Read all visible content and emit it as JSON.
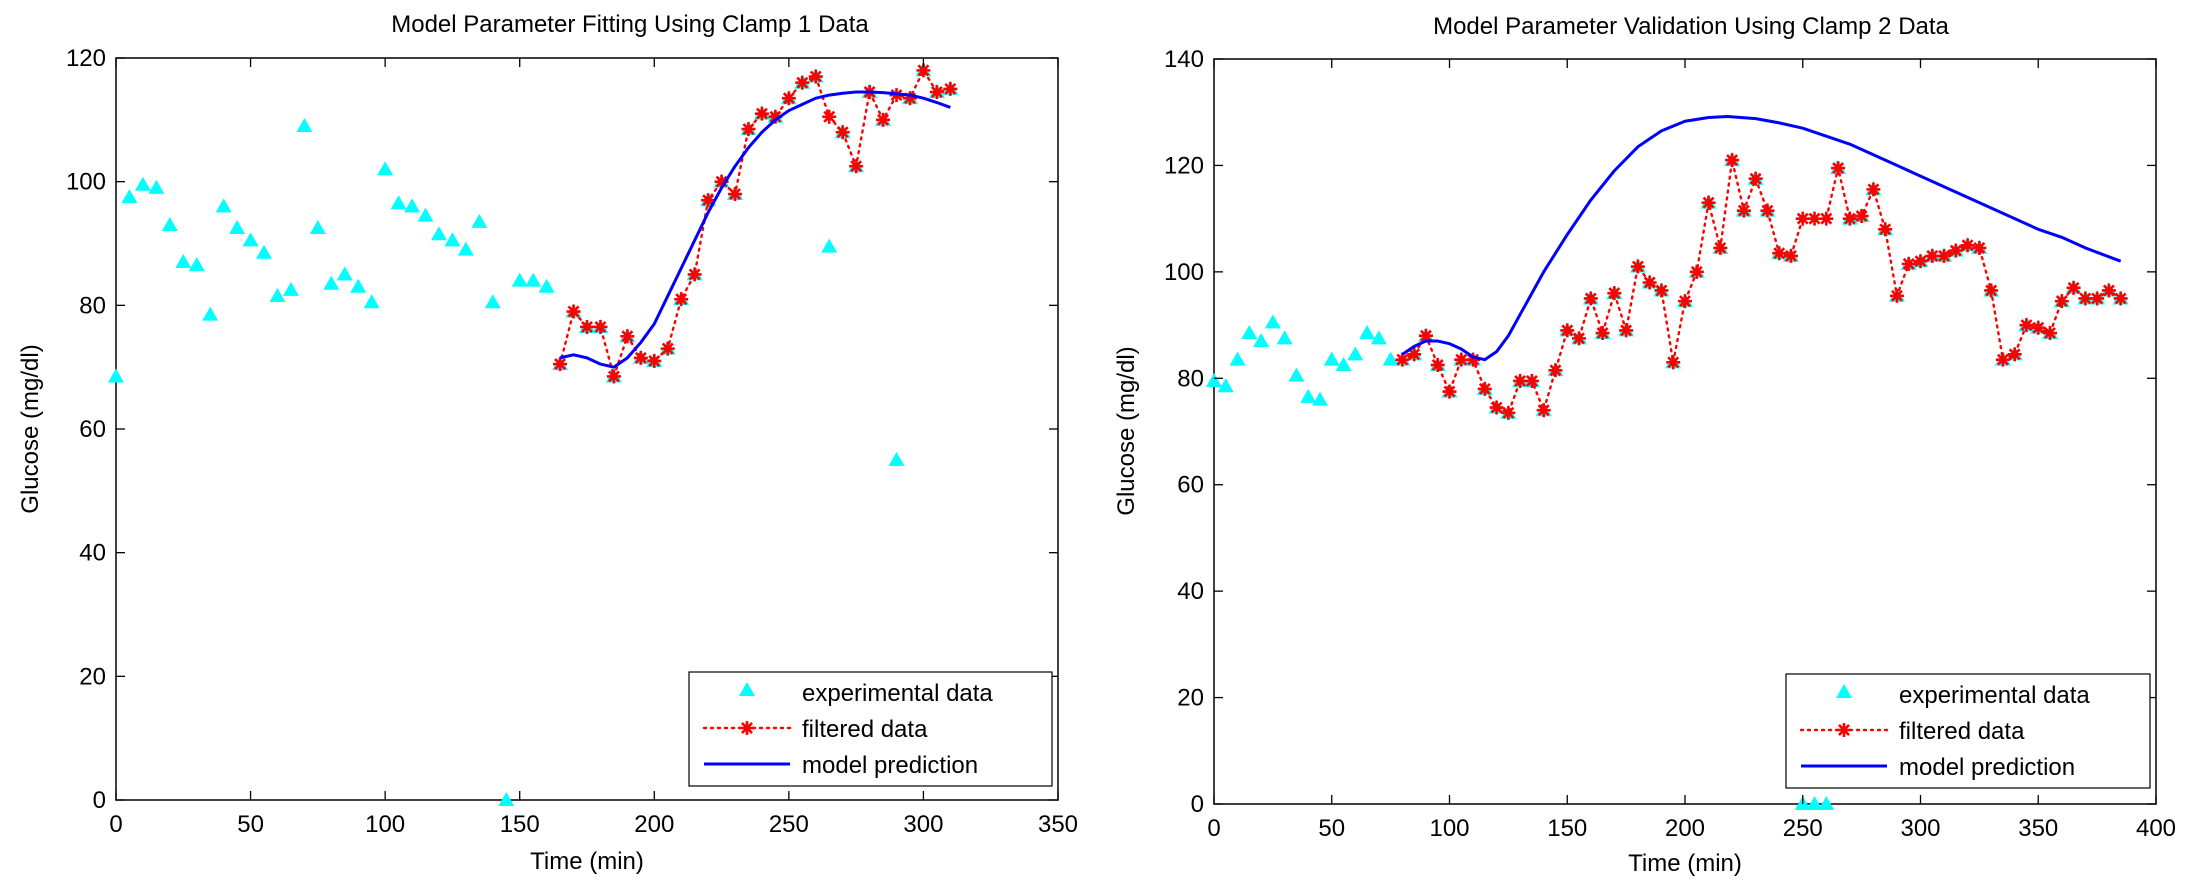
{
  "colors": {
    "experimental": "#00ffff",
    "filtered": "#ff0000",
    "model": "#0000ff",
    "axes": "#000000"
  },
  "chart_data": [
    {
      "type": "line",
      "title": "Model Parameter Fitting Using Clamp 1 Data",
      "xlabel": "Time (min)",
      "ylabel": "Glucose (mg/dl)",
      "xlim": [
        0,
        350
      ],
      "ylim": [
        0,
        120
      ],
      "xticks": [
        0,
        50,
        100,
        150,
        200,
        250,
        300,
        350
      ],
      "yticks": [
        0,
        20,
        40,
        60,
        80,
        100,
        120
      ],
      "grid": false,
      "legend_position": "bottom-right",
      "legend": [
        "experimental data",
        "filtered data",
        "model prediction"
      ],
      "series": [
        {
          "name": "experimental data",
          "marker": "triangle",
          "x": [
            0,
            5,
            10,
            15,
            20,
            25,
            30,
            35,
            40,
            45,
            50,
            55,
            60,
            65,
            70,
            75,
            80,
            85,
            90,
            95,
            100,
            105,
            110,
            115,
            120,
            125,
            130,
            135,
            140,
            145,
            150,
            155,
            160,
            165,
            170,
            175,
            180,
            185,
            190,
            195,
            200,
            205,
            210,
            215,
            220,
            225,
            230,
            235,
            240,
            245,
            250,
            255,
            260,
            265,
            270,
            275,
            280,
            285,
            290,
            295,
            300,
            305,
            310
          ],
          "y": [
            68.5,
            97.5,
            99.5,
            99,
            93,
            87,
            86.5,
            78.5,
            96,
            92.5,
            90.5,
            88.5,
            81.5,
            82.5,
            109,
            92.5,
            83.5,
            85,
            83,
            80.5,
            102,
            96.5,
            96,
            94.5,
            91.5,
            90.5,
            89,
            93.5,
            80.5,
            0,
            84,
            84,
            83,
            70.5,
            79,
            76.5,
            76.5,
            68.5,
            75,
            71.5,
            71,
            73,
            81,
            85,
            97,
            100,
            98,
            108.5,
            111,
            110.5,
            113.5,
            116,
            117,
            89.5,
            108,
            102.5,
            114.5,
            110,
            55,
            113.5,
            118,
            114.5,
            115
          ]
        },
        {
          "name": "filtered data",
          "marker": "asterisk",
          "line": "dotted",
          "x": [
            165,
            170,
            175,
            180,
            185,
            190,
            195,
            200,
            205,
            210,
            215,
            220,
            225,
            230,
            235,
            240,
            245,
            250,
            255,
            260,
            265,
            270,
            275,
            280,
            285,
            290,
            295,
            300,
            305,
            310
          ],
          "y": [
            70.5,
            79,
            76.5,
            76.5,
            68.5,
            75,
            71.5,
            71,
            73,
            81,
            85,
            97,
            100,
            98,
            108.5,
            111,
            110.5,
            113.5,
            116,
            117,
            110.5,
            108,
            102.5,
            114.5,
            110,
            114,
            113.5,
            118,
            114.5,
            115
          ]
        },
        {
          "name": "model prediction",
          "line": "solid",
          "x": [
            165,
            170,
            175,
            180,
            185,
            190,
            195,
            200,
            205,
            210,
            215,
            220,
            225,
            230,
            235,
            240,
            245,
            250,
            255,
            260,
            265,
            270,
            275,
            280,
            285,
            290,
            295,
            300,
            305,
            310
          ],
          "y": [
            71.5,
            72,
            71.5,
            70.5,
            70,
            71.5,
            74,
            77,
            81.5,
            86,
            90.5,
            95,
            99,
            102.5,
            105.5,
            108,
            110,
            111.5,
            112.5,
            113.5,
            114,
            114.3,
            114.5,
            114.5,
            114.4,
            114.2,
            114,
            113.5,
            112.8,
            112
          ]
        }
      ]
    },
    {
      "type": "line",
      "title": "Model Parameter Validation Using Clamp 2 Data",
      "xlabel": "Time (min)",
      "ylabel": "Glucose (mg/dl)",
      "xlim": [
        0,
        400
      ],
      "ylim": [
        0,
        140
      ],
      "xticks": [
        0,
        50,
        100,
        150,
        200,
        250,
        300,
        350,
        400
      ],
      "yticks": [
        0,
        20,
        40,
        60,
        80,
        100,
        120,
        140
      ],
      "grid": false,
      "legend_position": "bottom-right",
      "legend": [
        "experimental data",
        "filtered data",
        "model prediction"
      ],
      "series": [
        {
          "name": "experimental data",
          "marker": "triangle",
          "x": [
            0,
            5,
            10,
            15,
            20,
            25,
            30,
            35,
            40,
            45,
            50,
            55,
            60,
            65,
            70,
            75,
            80,
            85,
            90,
            95,
            100,
            105,
            110,
            115,
            120,
            125,
            130,
            135,
            140,
            145,
            150,
            155,
            160,
            165,
            170,
            175,
            180,
            185,
            190,
            195,
            200,
            205,
            210,
            215,
            220,
            225,
            230,
            235,
            240,
            245,
            250,
            255,
            260,
            265,
            270,
            275,
            280,
            285,
            290,
            295,
            300,
            305,
            310,
            315,
            320,
            325,
            330,
            335,
            340,
            345,
            350,
            355,
            360,
            365,
            370,
            375,
            380,
            385
          ],
          "y": [
            79.5,
            78.5,
            83.5,
            88.5,
            87,
            90.5,
            87.5,
            80.5,
            76.5,
            76,
            83.5,
            82.5,
            84.5,
            88.5,
            87.5,
            83.5,
            83.5,
            84.5,
            88,
            82.5,
            77.5,
            83.5,
            83.5,
            78,
            74.5,
            73.5,
            79.5,
            79.5,
            74,
            81.5,
            89,
            87.5,
            95,
            88.5,
            96,
            89,
            101,
            98,
            96.5,
            83,
            94.5,
            100,
            113,
            104.5,
            121,
            111.5,
            117.5,
            111.5,
            103.5,
            103,
            0,
            0,
            0,
            119.5,
            110,
            110.5,
            115.5,
            108,
            95.5,
            101.5,
            102,
            103,
            103,
            104,
            105,
            104.5,
            96.5,
            83.5,
            84.5,
            90,
            89.5,
            88.5,
            94.5,
            97,
            95,
            95,
            96.5,
            95
          ]
        },
        {
          "name": "filtered data",
          "marker": "asterisk",
          "line": "dotted",
          "x": [
            80,
            85,
            90,
            95,
            100,
            105,
            110,
            115,
            120,
            125,
            130,
            135,
            140,
            145,
            150,
            155,
            160,
            165,
            170,
            175,
            180,
            185,
            190,
            195,
            200,
            205,
            210,
            215,
            220,
            225,
            230,
            235,
            240,
            245,
            250,
            255,
            260,
            265,
            270,
            275,
            280,
            285,
            290,
            295,
            300,
            305,
            310,
            315,
            320,
            325,
            330,
            335,
            340,
            345,
            350,
            355,
            360,
            365,
            370,
            375,
            380,
            385
          ],
          "y": [
            83.5,
            84.5,
            88,
            82.5,
            77.5,
            83.5,
            83.5,
            78,
            74.5,
            73.5,
            79.5,
            79.5,
            74,
            81.5,
            89,
            87.5,
            95,
            88.5,
            96,
            89,
            101,
            98,
            96.5,
            83,
            94.5,
            100,
            113,
            104.5,
            121,
            111.5,
            117.5,
            111.5,
            103.5,
            103,
            110,
            110,
            110,
            119.5,
            110,
            110.5,
            115.5,
            108,
            95.5,
            101.5,
            102,
            103,
            103,
            104,
            105,
            104.5,
            96.5,
            83.5,
            84.5,
            90,
            89.5,
            88.5,
            94.5,
            97,
            95,
            95,
            96.5,
            95
          ]
        },
        {
          "name": "model prediction",
          "line": "solid",
          "x": [
            80,
            85,
            90,
            95,
            100,
            105,
            110,
            115,
            120,
            125,
            130,
            140,
            150,
            160,
            170,
            180,
            190,
            200,
            210,
            218,
            230,
            240,
            250,
            260,
            270,
            280,
            290,
            300,
            310,
            320,
            330,
            340,
            350,
            360,
            370,
            385
          ],
          "y": [
            84.5,
            86,
            87,
            87,
            86.5,
            85.5,
            84,
            83.5,
            85,
            88,
            92,
            100,
            107,
            113.5,
            119,
            123.5,
            126.5,
            128.3,
            129,
            129.2,
            128.8,
            128,
            127,
            125.5,
            124,
            122,
            120,
            118,
            116,
            114,
            112,
            110,
            108,
            106.5,
            104.5,
            102
          ]
        }
      ]
    }
  ]
}
